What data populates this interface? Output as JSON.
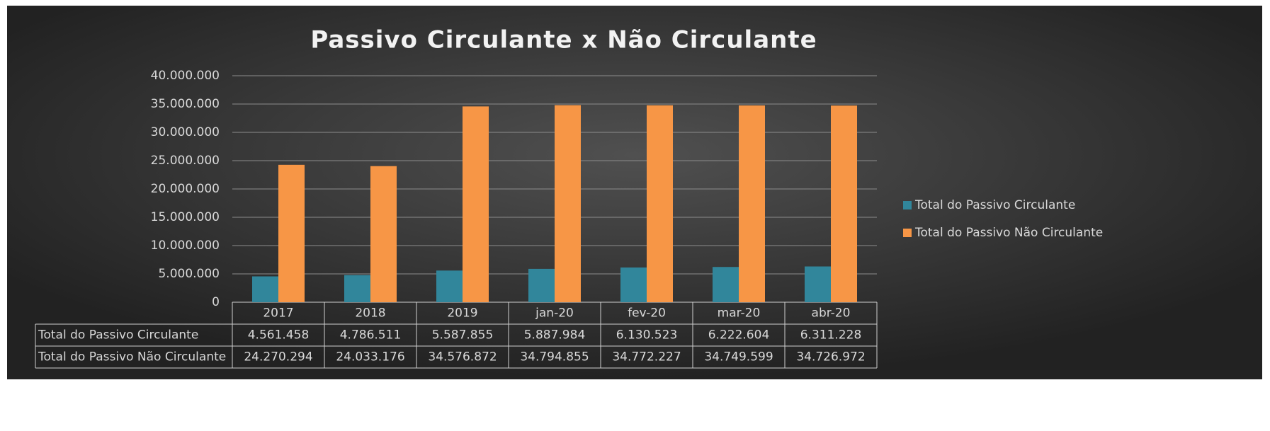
{
  "chart_data": {
    "type": "bar",
    "title": "Passivo Circulante x Não Circulante",
    "categories": [
      "2017",
      "2018",
      "2019",
      "jan-20",
      "fev-20",
      "mar-20",
      "abr-20"
    ],
    "series": [
      {
        "name": "Total do Passivo Circulante",
        "color": "#31869b",
        "values": [
          4561458,
          4786511,
          5587855,
          5887984,
          6130523,
          6222604,
          6311228
        ],
        "value_labels": [
          "4.561.458",
          "4.786.511",
          "5.587.855",
          "5.887.984",
          "6.130.523",
          "6.222.604",
          "6.311.228"
        ]
      },
      {
        "name": "Total do Passivo Não Circulante",
        "color": "#f79646",
        "values": [
          24270294,
          24033176,
          34576872,
          34794855,
          34772227,
          34749599,
          34726972
        ],
        "value_labels": [
          "24.270.294",
          "24.033.176",
          "34.576.872",
          "34.794.855",
          "34.772.227",
          "34.749.599",
          "34.726.972"
        ]
      }
    ],
    "ylim": [
      0,
      40000000
    ],
    "yticks": [
      0,
      {
        "value": 5000000,
        "label": "5.000.000"
      },
      {
        "value": 10000000,
        "label": "10.000.000"
      },
      {
        "value": 15000000,
        "label": "15.000.000"
      },
      {
        "value": 20000000,
        "label": "20.000.000"
      },
      {
        "value": 25000000,
        "label": "25.000.000"
      },
      {
        "value": 30000000,
        "label": "30.000.000"
      },
      {
        "value": 35000000,
        "label": "35.000.000"
      },
      {
        "value": 40000000,
        "label": "40.000.000"
      }
    ],
    "grid": true,
    "legend": "right"
  }
}
